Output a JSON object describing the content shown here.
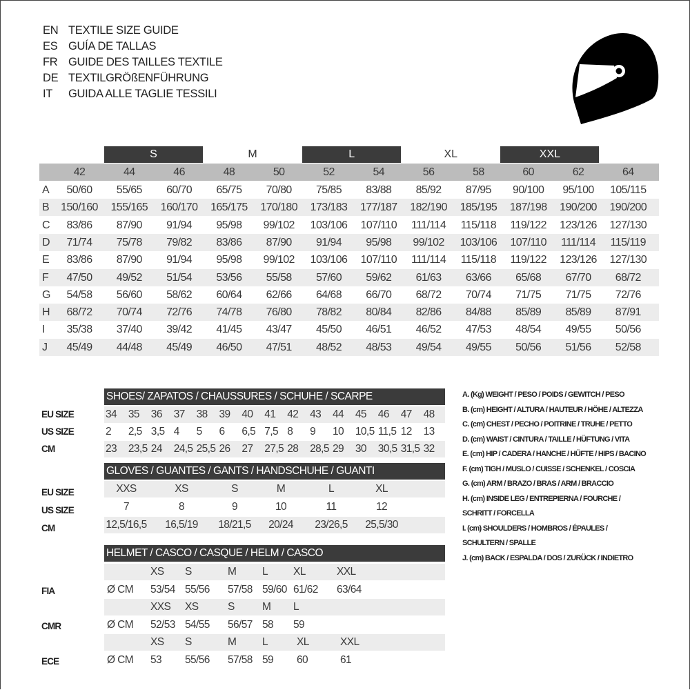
{
  "titles": [
    {
      "code": "EN",
      "text": "TEXTILE SIZE GUIDE"
    },
    {
      "code": "ES",
      "text": "GUÍA DE TALLAS"
    },
    {
      "code": "FR",
      "text": "GUIDE DES TAILLES TEXTILE"
    },
    {
      "code": "DE",
      "text": "TEXTILGRÖßENFÜHRUNG"
    },
    {
      "code": "IT",
      "text": "GUIDA ALLE TAGLIE TESSILI"
    }
  ],
  "icon": "helmet-icon",
  "colors": {
    "dark_header": "#3b3b3b",
    "number_row": "#bcbcbc",
    "alt_row": "#ececec"
  },
  "textile": {
    "bands": [
      {
        "label": "S",
        "dark": true
      },
      {
        "label": "M",
        "dark": false
      },
      {
        "label": "L",
        "dark": true
      },
      {
        "label": "XL",
        "dark": false
      },
      {
        "label": "XXL",
        "dark": true
      }
    ],
    "sizes": [
      "42",
      "44",
      "46",
      "48",
      "50",
      "52",
      "54",
      "56",
      "58",
      "60",
      "62",
      "64"
    ],
    "rows": [
      {
        "label": "A",
        "values": [
          "50/60",
          "55/65",
          "60/70",
          "65/75",
          "70/80",
          "75/85",
          "83/88",
          "85/92",
          "87/95",
          "90/100",
          "95/100",
          "105/115"
        ]
      },
      {
        "label": "B",
        "values": [
          "150/160",
          "155/165",
          "160/170",
          "165/175",
          "170/180",
          "173/183",
          "177/187",
          "182/190",
          "185/195",
          "187/198",
          "190/200",
          "190/200"
        ]
      },
      {
        "label": "C",
        "values": [
          "83/86",
          "87/90",
          "91/94",
          "95/98",
          "99/102",
          "103/106",
          "107/110",
          "111/114",
          "115/118",
          "119/122",
          "123/126",
          "127/130"
        ]
      },
      {
        "label": "D",
        "values": [
          "71/74",
          "75/78",
          "79/82",
          "83/86",
          "87/90",
          "91/94",
          "95/98",
          "99/102",
          "103/106",
          "107/110",
          "111/114",
          "115/119"
        ]
      },
      {
        "label": "E",
        "values": [
          "83/86",
          "87/90",
          "91/94",
          "95/98",
          "99/102",
          "103/106",
          "107/110",
          "111/114",
          "115/118",
          "119/122",
          "123/126",
          "127/130"
        ]
      },
      {
        "label": "F",
        "values": [
          "47/50",
          "49/52",
          "51/54",
          "53/56",
          "55/58",
          "57/60",
          "59/62",
          "61/63",
          "63/66",
          "65/68",
          "67/70",
          "68/72"
        ]
      },
      {
        "label": "G",
        "values": [
          "54/58",
          "56/60",
          "58/62",
          "60/64",
          "62/66",
          "64/68",
          "66/70",
          "68/72",
          "70/74",
          "71/75",
          "71/75",
          "72/76"
        ]
      },
      {
        "label": "H",
        "values": [
          "68/72",
          "70/74",
          "72/76",
          "74/78",
          "76/80",
          "78/82",
          "80/84",
          "82/86",
          "84/88",
          "85/89",
          "85/89",
          "87/91"
        ]
      },
      {
        "label": "I",
        "values": [
          "35/38",
          "37/40",
          "39/42",
          "41/45",
          "43/47",
          "45/50",
          "46/51",
          "46/52",
          "47/53",
          "48/54",
          "49/55",
          "50/56"
        ]
      },
      {
        "label": "J",
        "values": [
          "45/49",
          "44/48",
          "45/49",
          "46/50",
          "47/51",
          "48/52",
          "48/53",
          "49/54",
          "49/55",
          "50/56",
          "51/56",
          "52/58"
        ]
      }
    ]
  },
  "shoes": {
    "title": "SHOES/ ZAPATOS / CHAUSSURES / SCHUHE / SCARPE",
    "rows": [
      {
        "label": "EU SIZE",
        "values": [
          "34",
          "35",
          "36",
          "37",
          "38",
          "39",
          "40",
          "41",
          "42",
          "43",
          "44",
          "45",
          "46",
          "47",
          "48"
        ]
      },
      {
        "label": "US SIZE",
        "values": [
          "2",
          "2,5",
          "3,5",
          "4",
          "5",
          "6",
          "6,5",
          "7,5",
          "8",
          "9",
          "10",
          "10,5",
          "11,5",
          "12",
          "13"
        ]
      },
      {
        "label": "CM",
        "values": [
          "23",
          "23,5",
          "24",
          "24,5",
          "25,5",
          "26",
          "27",
          "27,5",
          "28",
          "28,5",
          "29",
          "30",
          "30,5",
          "31,5",
          "32"
        ]
      }
    ]
  },
  "gloves": {
    "title": "GLOVES / GUANTES / GANTS / HANDSCHUHE / GUANTI",
    "rows": [
      {
        "label": "EU SIZE",
        "values": [
          "XXS",
          "XS",
          "S",
          "M",
          "L",
          "XL"
        ]
      },
      {
        "label": "US SIZE",
        "values": [
          "7",
          "8",
          "9",
          "10",
          "11",
          "12"
        ]
      },
      {
        "label": "CM",
        "values": [
          "12,5/16,5",
          "16,5/19",
          "18/21,5",
          "20/24",
          "23/26,5",
          "25,5/30"
        ]
      }
    ]
  },
  "helmet": {
    "title": "HELMET / CASCO / CASQUE / HELM / CASCO",
    "unit": "Ø CM",
    "groups": [
      {
        "label": "FIA",
        "sizes": [
          "XS",
          "S",
          "M",
          "L",
          "XL",
          "XXL"
        ],
        "values": [
          "53/54",
          "55/56",
          "57/58",
          "59/60",
          "61/62",
          "63/64"
        ]
      },
      {
        "label": "CMR",
        "sizes": [
          "XXS",
          "XS",
          "S",
          "M",
          "L"
        ],
        "values": [
          "52/53",
          "54/55",
          "56/57",
          "58",
          "59"
        ]
      },
      {
        "label": "ECE",
        "sizes": [
          "XS",
          "S",
          "M",
          "L",
          "XL",
          "XXL"
        ],
        "values": [
          "53",
          "55/56",
          "57/58",
          "59",
          "60",
          "61"
        ]
      }
    ]
  },
  "legend": [
    "A. (Kg) WEIGHT / PESO / POIDS / GEWITCH / PESO",
    "B. (cm) HEIGHT / ALTURA / HAUTEUR / HÖHE / ALTEZZA",
    "C. (cm) CHEST / PECHO / POITRINE / TRUHE / PETTO",
    "D. (cm) WAIST / CINTURA / TAILLE / HÜFTUNG / VITA",
    "E. (cm) HIP / CADERA / HANCHE / HÜFTE / HIPS /  BACINO",
    "F.  (cm) TIGH / MUSLO / CUISSE / SCHENKEL / COSCIA",
    "G. (cm) ARM  / BRAZO / BRAS / ARM / BRACCIO",
    "H. (cm) INSIDE LEG / ENTREPIERNA / FOURCHE /",
    "SCHRITT / FORCELLA",
    "I.  (cm) SHOULDERS / HOMBROS / ÉPAULES /",
    "SCHULTERN / SPALLE",
    "J. (cm) BACK / ESPALDA / DOS / ZURÜCK / INDIETRO"
  ]
}
